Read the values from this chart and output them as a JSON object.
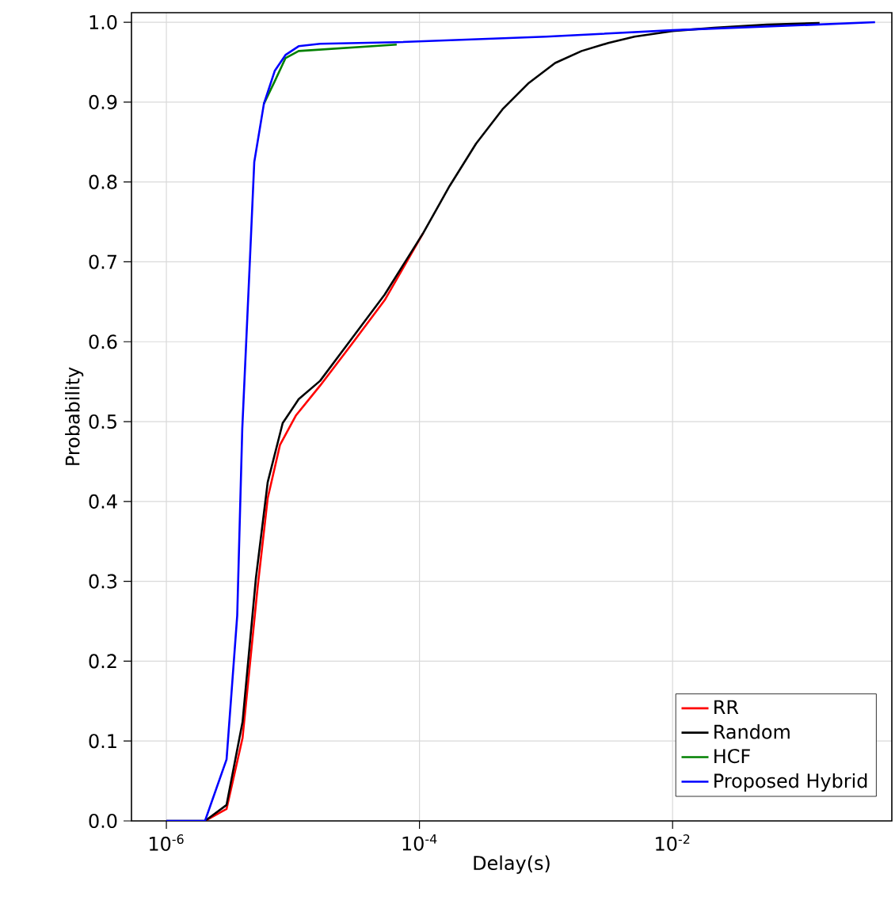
{
  "chart_data": {
    "type": "line",
    "xlabel": "Delay(s)",
    "ylabel": "Probability",
    "log": "x",
    "grid": true,
    "legend": "bottom right",
    "line_style": "solid",
    "marker": "none",
    "xlim": [
      5.3e-07,
      0.54
    ],
    "ylim": [
      0,
      1.012
    ],
    "xticks": [
      {
        "value": 1e-06,
        "label": "10$^{-6}$"
      },
      {
        "value": 0.0001,
        "label": "10$^{-4}$"
      },
      {
        "value": 0.01,
        "label": "10$^{-2}$"
      }
    ],
    "yticks": [
      {
        "value": 0,
        "label": "0.0"
      },
      {
        "value": 0.1,
        "label": "0.1"
      },
      {
        "value": 0.2,
        "label": "0.2"
      },
      {
        "value": 0.3,
        "label": "0.3"
      },
      {
        "value": 0.4,
        "label": "0.4"
      },
      {
        "value": 0.5,
        "label": "0.5"
      },
      {
        "value": 0.6,
        "label": "0.6"
      },
      {
        "value": 0.7,
        "label": "0.7"
      },
      {
        "value": 0.8,
        "label": "0.8"
      },
      {
        "value": 0.9,
        "label": "0.9"
      },
      {
        "value": 1.0,
        "label": "1.0"
      }
    ],
    "series": [
      {
        "name": "RR",
        "color": "#ff0000",
        "x": [
          2.02e-06,
          2.99e-06,
          4e-06,
          5.25e-06,
          6.32e-06,
          7.91e-06,
          1.06e-05,
          1.64e-05,
          2.95e-05,
          5.31e-05,
          0.000107
        ],
        "values": [
          0,
          0.015,
          0.104,
          0.291,
          0.404,
          0.471,
          0.508,
          0.545,
          0.598,
          0.652,
          0.736
        ]
      },
      {
        "name": "Random",
        "color": "#000000",
        "x": [
          1e-06,
          2.02e-06,
          2.99e-06,
          4e-06,
          5.1e-06,
          6.32e-06,
          8.3e-06,
          1.11e-05,
          1.64e-05,
          2.95e-05,
          5.31e-05,
          0.000107,
          0.000173,
          0.00028,
          0.000453,
          0.000731,
          0.00118,
          0.00191,
          0.0031,
          0.005,
          0.01,
          0.0212,
          0.0553,
          0.145
        ],
        "values": [
          0,
          0,
          0.02,
          0.124,
          0.304,
          0.424,
          0.498,
          0.528,
          0.551,
          0.605,
          0.659,
          0.736,
          0.795,
          0.848,
          0.891,
          0.924,
          0.949,
          0.964,
          0.974,
          0.982,
          0.989,
          0.993,
          0.997,
          0.999
        ]
      },
      {
        "name": "HCF",
        "color": "#008000",
        "x": [
          5.9e-06,
          7.18e-06,
          8.73e-06,
          1.11e-05,
          6.61e-05
        ],
        "values": [
          0.898,
          0.926,
          0.955,
          0.964,
          0.972
        ]
      },
      {
        "name": "Proposed Hybrid",
        "color": "#0000ff",
        "x": [
          1e-06,
          2.02e-06,
          2.99e-06,
          3.63e-06,
          3.98e-06,
          4.54e-06,
          4.95e-06,
          5.9e-06,
          7.18e-06,
          8.73e-06,
          1.11e-05,
          1.64e-05,
          6.61e-05,
          0.001,
          0.01,
          0.398
        ],
        "values": [
          0,
          0,
          0.077,
          0.257,
          0.491,
          0.691,
          0.825,
          0.898,
          0.939,
          0.959,
          0.97,
          0.973,
          0.975,
          0.982,
          0.99,
          1.0
        ]
      }
    ]
  }
}
